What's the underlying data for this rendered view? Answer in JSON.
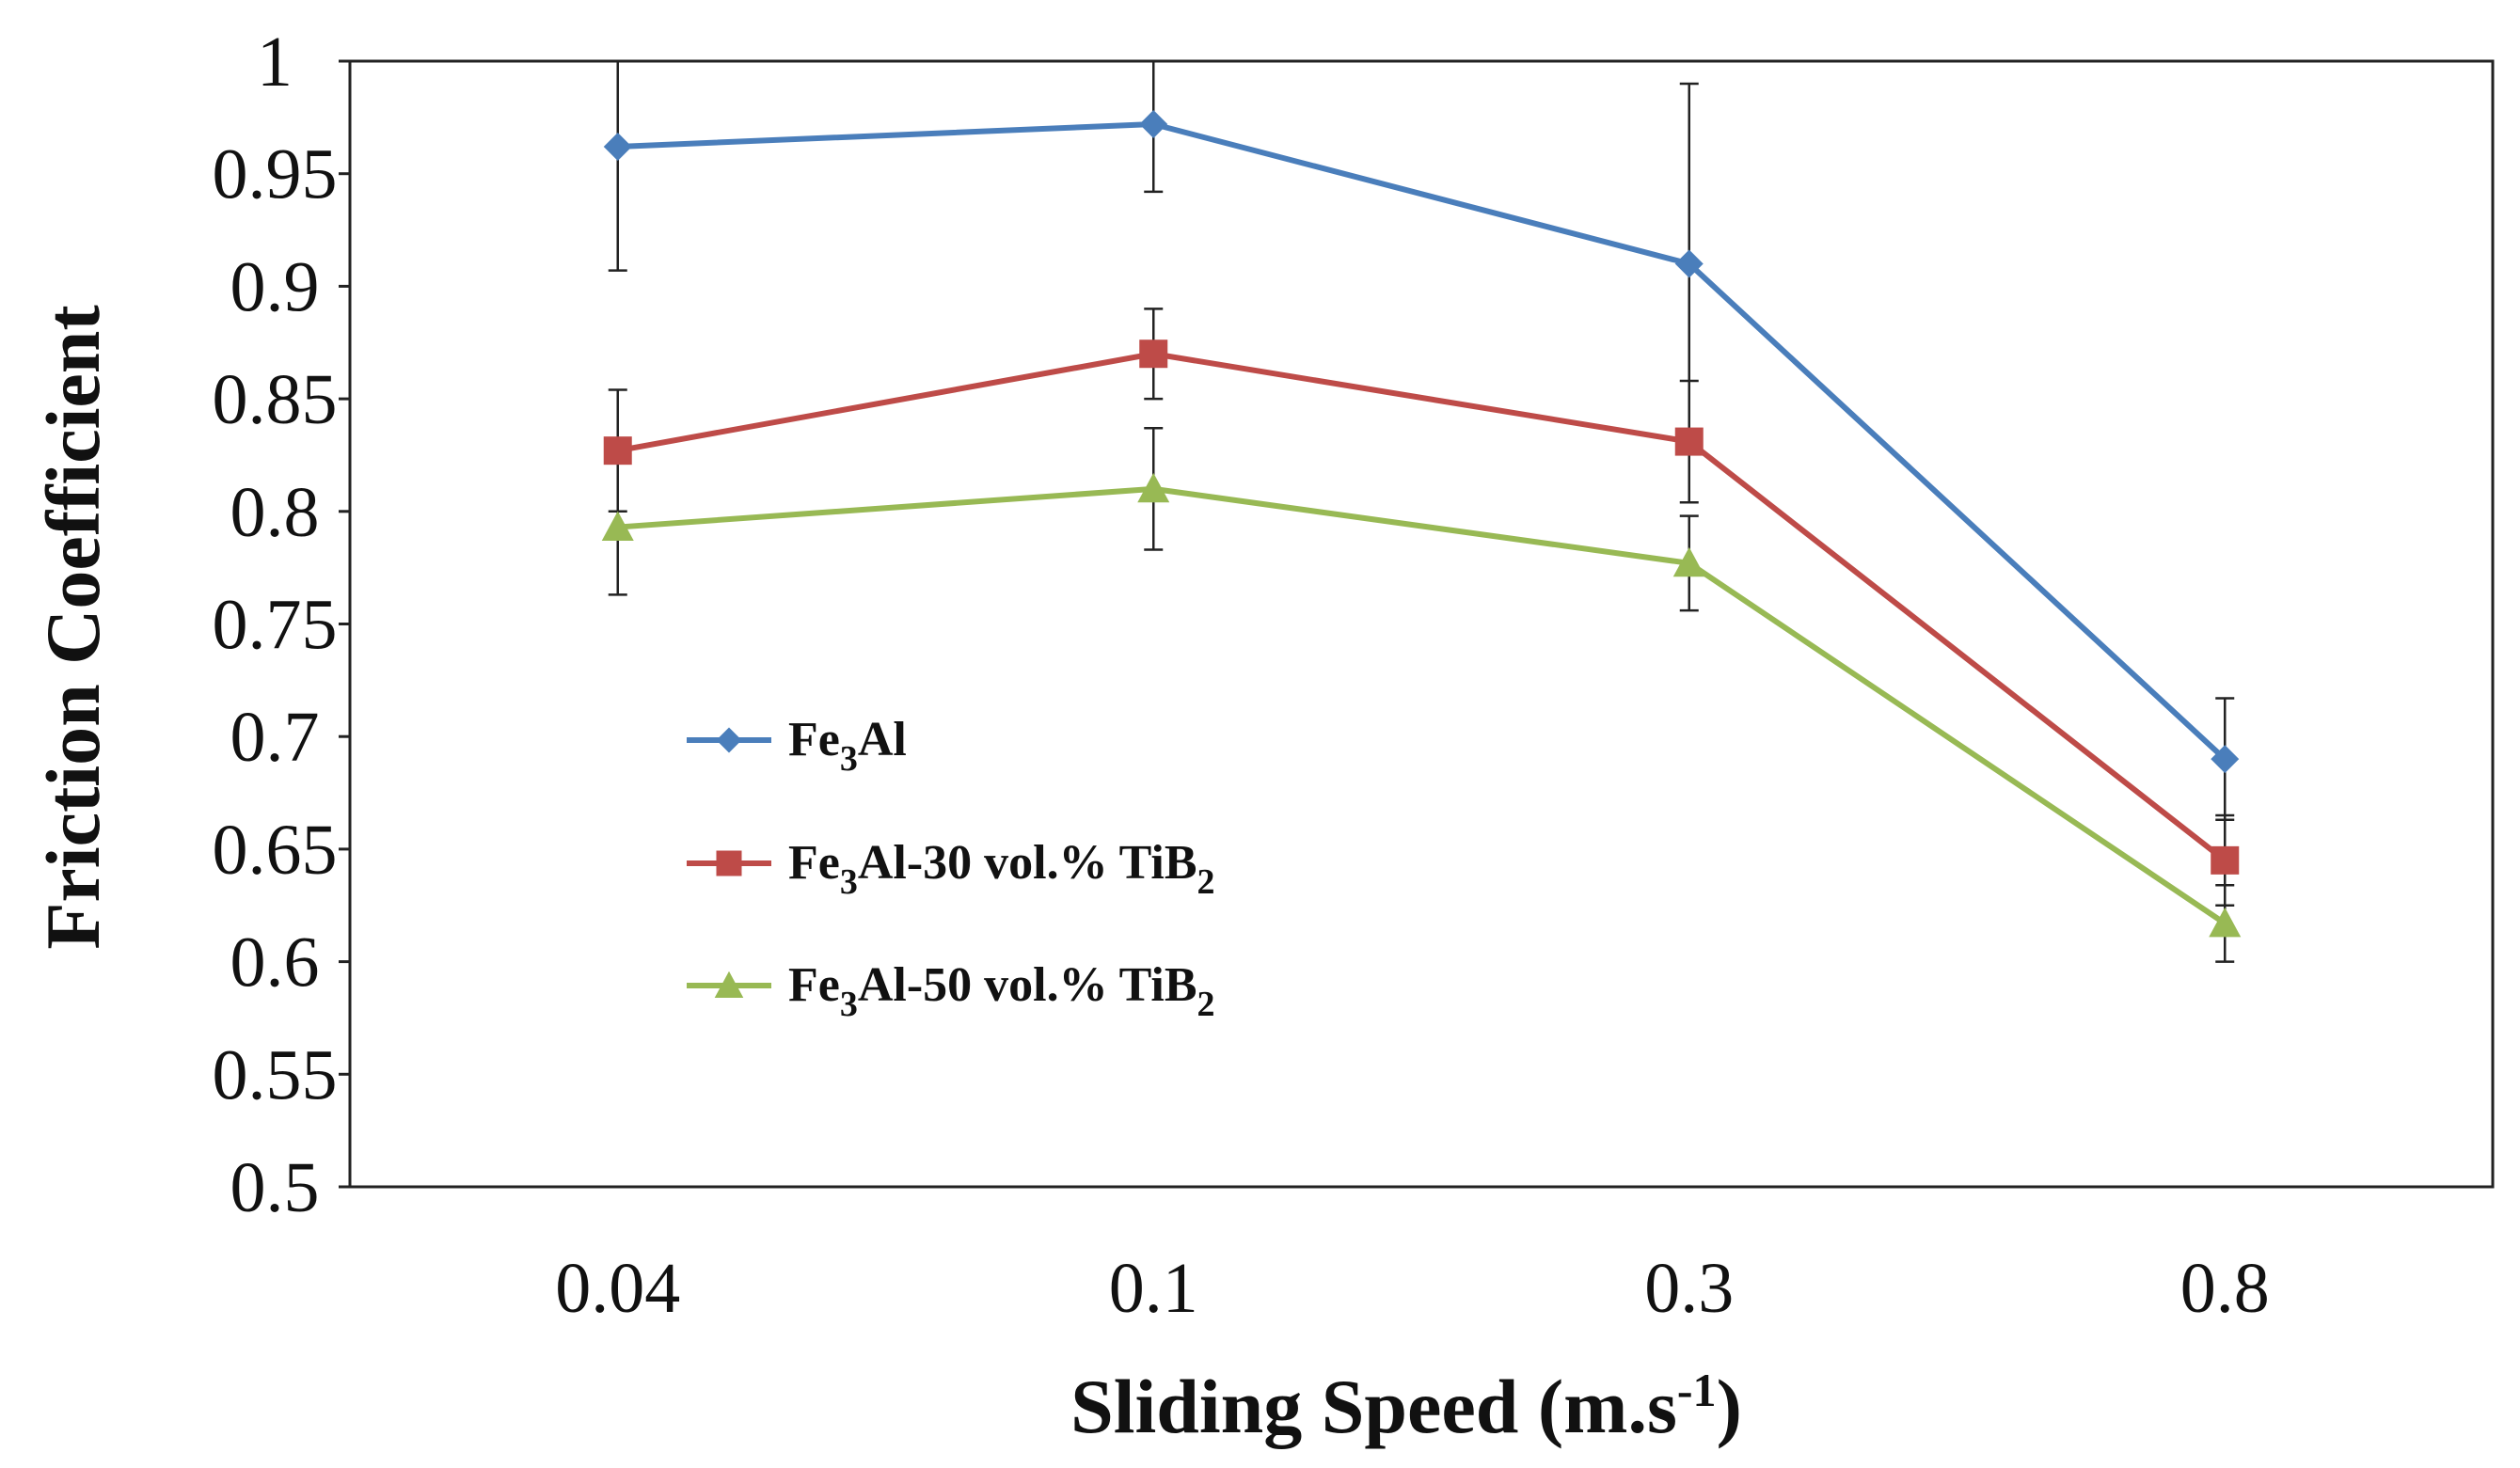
{
  "chart_data": {
    "type": "line",
    "title": "",
    "xlabel": "Sliding Speed (m.s",
    "xlabel_sup": "-1",
    "xlabel_end": ")",
    "ylabel": "Friction Coefficient",
    "categories": [
      "0.04",
      "0.1",
      "0.3",
      "0.8"
    ],
    "ylim": [
      0.5,
      1.0
    ],
    "yticks": [
      "0.5",
      "0.55",
      "0.6",
      "0.65",
      "0.7",
      "0.75",
      "0.8",
      "0.85",
      "0.9",
      "0.95",
      "1"
    ],
    "grid": false,
    "legend_position": "center-left",
    "series": [
      {
        "name": "Fe3Al",
        "legend_parts": [
          "Fe",
          "3",
          "Al",
          "",
          ""
        ],
        "color": "#4a7ebb",
        "marker": "diamond",
        "values": [
          0.962,
          0.972,
          0.91,
          0.69
        ],
        "errors": [
          0.055,
          0.03,
          0.08,
          0.027
        ]
      },
      {
        "name": "Fe3Al-30 vol.% TiB2",
        "legend_parts": [
          "Fe",
          "3",
          "Al-30 vol.% TiB",
          "2",
          ""
        ],
        "color": "#be4b48",
        "marker": "square",
        "values": [
          0.827,
          0.87,
          0.831,
          0.645
        ],
        "errors": [
          0.027,
          0.02,
          0.027,
          0.02
        ]
      },
      {
        "name": "Fe3Al-50 vol.% TiB2",
        "legend_parts": [
          "Fe",
          "3",
          "Al-50 vol.% TiB",
          "2",
          ""
        ],
        "color": "#98b954",
        "marker": "triangle",
        "values": [
          0.793,
          0.81,
          0.777,
          0.617
        ],
        "errors": [
          0.03,
          0.027,
          0.021,
          0.017
        ]
      }
    ]
  }
}
